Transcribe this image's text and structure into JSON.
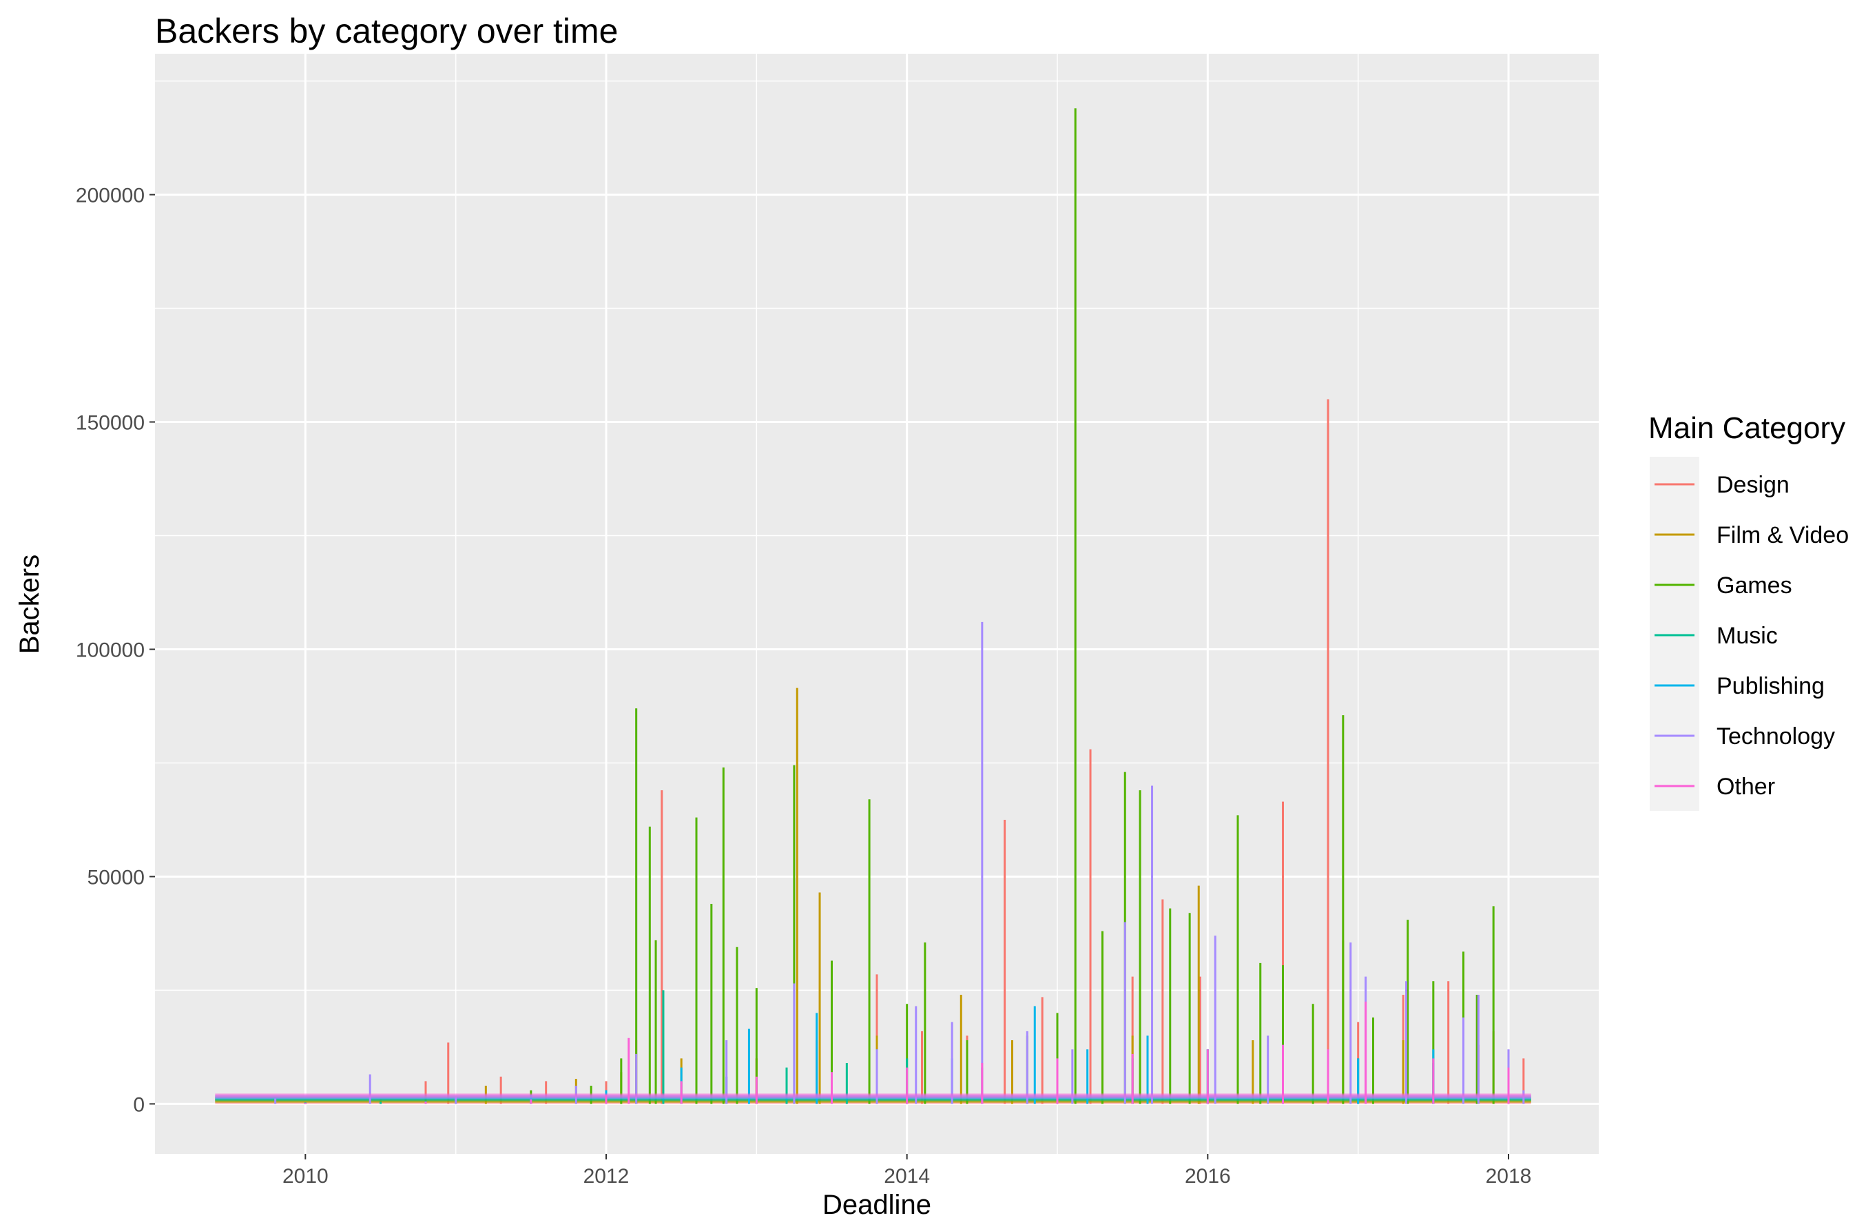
{
  "chart_data": {
    "type": "line",
    "title": "Backers by category over time",
    "xlabel": "Deadline",
    "ylabel": "Backers",
    "xlim": [
      2009.0,
      2018.6
    ],
    "ylim": [
      -11000,
      231000
    ],
    "x_ticks": [
      2010,
      2012,
      2014,
      2016,
      2018
    ],
    "x_tick_labels": [
      "2010",
      "2012",
      "2014",
      "2016",
      "2018"
    ],
    "y_ticks": [
      0,
      50000,
      100000,
      150000,
      200000
    ],
    "y_tick_labels": [
      "0",
      "50000",
      "100000",
      "150000",
      "200000"
    ],
    "grid": true,
    "legend": {
      "title": "Main Category",
      "position": "right"
    },
    "series": [
      {
        "name": "Design",
        "color": "#F8766D",
        "x": [
          2009.4,
          2010.0,
          2010.5,
          2010.8,
          2010.95,
          2011.3,
          2011.6,
          2012.0,
          2012.2,
          2012.37,
          2012.6,
          2013.0,
          2013.4,
          2013.8,
          2014.1,
          2014.4,
          2014.65,
          2014.9,
          2015.22,
          2015.5,
          2015.7,
          2015.95,
          2016.2,
          2016.5,
          2016.8,
          2017.0,
          2017.3,
          2017.6,
          2017.9,
          2018.1,
          2018.15
        ],
        "y": [
          0,
          500,
          1000,
          5000,
          13500,
          6000,
          5000,
          5000,
          14000,
          69000,
          9000,
          10000,
          14000,
          28500,
          16000,
          15000,
          62500,
          23500,
          78000,
          28000,
          45000,
          28000,
          21000,
          66500,
          155000,
          18000,
          24000,
          27000,
          16000,
          10000,
          0
        ]
      },
      {
        "name": "Film & Video",
        "color": "#C49A00",
        "x": [
          2009.4,
          2010.0,
          2010.5,
          2010.8,
          2011.2,
          2011.8,
          2012.1,
          2012.5,
          2013.0,
          2013.27,
          2013.42,
          2013.8,
          2014.36,
          2014.7,
          2015.0,
          2015.5,
          2015.94,
          2016.3,
          2016.9,
          2017.3,
          2017.8,
          2018.15
        ],
        "y": [
          0,
          300,
          800,
          2000,
          4000,
          5500,
          7000,
          10000,
          10000,
          91500,
          46500,
          15000,
          24000,
          14000,
          10000,
          15000,
          48000,
          14000,
          36000,
          14000,
          13000,
          0
        ]
      },
      {
        "name": "Games",
        "color": "#53B400",
        "x": [
          2009.4,
          2010.0,
          2010.8,
          2011.5,
          2011.9,
          2012.1,
          2012.2,
          2012.29,
          2012.33,
          2012.6,
          2012.7,
          2012.78,
          2012.87,
          2013.0,
          2013.25,
          2013.5,
          2013.75,
          2014.0,
          2014.12,
          2014.4,
          2014.8,
          2015.0,
          2015.12,
          2015.3,
          2015.45,
          2015.55,
          2015.75,
          2015.88,
          2016.2,
          2016.35,
          2016.5,
          2016.7,
          2016.9,
          2017.1,
          2017.33,
          2017.5,
          2017.7,
          2017.79,
          2017.9,
          2018.15
        ],
        "y": [
          0,
          200,
          1000,
          3000,
          4000,
          10000,
          87000,
          61000,
          36000,
          63000,
          44000,
          74000,
          34500,
          25500,
          74500,
          31500,
          67000,
          22000,
          35500,
          14000,
          15000,
          20000,
          219000,
          38000,
          73000,
          69000,
          43000,
          42000,
          63500,
          31000,
          30500,
          22000,
          85500,
          19000,
          40500,
          27000,
          33500,
          24000,
          43500,
          0
        ]
      },
      {
        "name": "Music",
        "color": "#00C094",
        "x": [
          2009.4,
          2010.0,
          2010.5,
          2011.0,
          2011.5,
          2012.0,
          2012.38,
          2012.8,
          2013.2,
          2013.6,
          2014.0,
          2014.5,
          2015.0,
          2015.5,
          2016.0,
          2016.5,
          2017.0,
          2017.5,
          2018.15
        ],
        "y": [
          0,
          200,
          500,
          800,
          2000,
          3000,
          25000,
          6000,
          8000,
          9000,
          10000,
          8000,
          9000,
          10000,
          12000,
          13000,
          10000,
          9000,
          0
        ]
      },
      {
        "name": "Publishing",
        "color": "#00B6EB",
        "x": [
          2009.4,
          2010.0,
          2010.8,
          2011.5,
          2012.0,
          2012.5,
          2012.95,
          2013.4,
          2013.8,
          2014.3,
          2014.85,
          2015.2,
          2015.6,
          2016.0,
          2016.5,
          2017.0,
          2017.5,
          2018.15
        ],
        "y": [
          0,
          300,
          600,
          2000,
          3000,
          8000,
          16500,
          20000,
          12000,
          10000,
          21500,
          12000,
          15000,
          12000,
          9000,
          10000,
          12000,
          0
        ]
      },
      {
        "name": "Technology",
        "color": "#A58AFF",
        "x": [
          2009.4,
          2009.8,
          2010.43,
          2011.0,
          2011.8,
          2012.2,
          2012.8,
          2013.25,
          2013.8,
          2014.06,
          2014.3,
          2014.5,
          2014.8,
          2015.1,
          2015.45,
          2015.63,
          2016.05,
          2016.4,
          2016.95,
          2017.05,
          2017.32,
          2017.7,
          2017.8,
          2018.0,
          2018.1,
          2018.15
        ],
        "y": [
          0,
          1200,
          6500,
          1500,
          4000,
          11000,
          14000,
          26500,
          12000,
          21500,
          18000,
          106000,
          16000,
          12000,
          40000,
          70000,
          37000,
          15000,
          35500,
          28000,
          27000,
          19000,
          24000,
          12000,
          3000,
          0
        ]
      },
      {
        "name": "Other",
        "color": "#FB61D7",
        "x": [
          2009.4,
          2010.0,
          2010.8,
          2011.5,
          2012.0,
          2012.15,
          2012.5,
          2013.0,
          2013.5,
          2014.0,
          2014.5,
          2015.0,
          2015.5,
          2016.0,
          2016.5,
          2016.8,
          2017.05,
          2017.5,
          2018.0,
          2018.15
        ],
        "y": [
          0,
          200,
          500,
          1000,
          2000,
          14500,
          5000,
          6000,
          7000,
          8000,
          9000,
          10000,
          11000,
          12000,
          13000,
          12000,
          22500,
          10000,
          8000,
          0
        ]
      }
    ]
  }
}
